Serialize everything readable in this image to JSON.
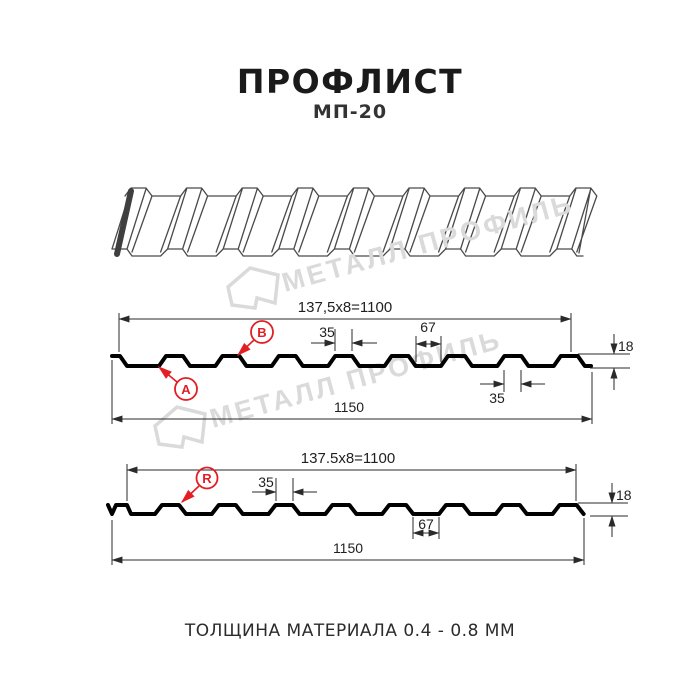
{
  "header": {
    "title": "ПРОФЛИСТ",
    "subtitle": "МП-20"
  },
  "footer": {
    "note": "ТОЛЩИНА МАТЕРИАЛА 0.4 - 0.8 ММ"
  },
  "watermark": {
    "text": "МЕТАЛЛ ПРОФИЛЬ",
    "color": "#dadada"
  },
  "colors": {
    "accent_red": "#e31e24",
    "profile_line": "#000000",
    "dimension_line": "#2a2a2a"
  },
  "diagram_top": {
    "dim_pitch_total": "137,5x8=1100",
    "dim_rib_top": "35",
    "dim_valley": "67",
    "dim_height": "18",
    "dim_rib_bottom": "35",
    "dim_overall": "1150",
    "label_a": "A",
    "label_b": "B"
  },
  "diagram_bottom": {
    "dim_pitch_total": "137.5x8=1100",
    "dim_rib_top": "35",
    "dim_height": "18",
    "dim_valley": "67",
    "dim_overall": "1150",
    "label_r": "R"
  }
}
